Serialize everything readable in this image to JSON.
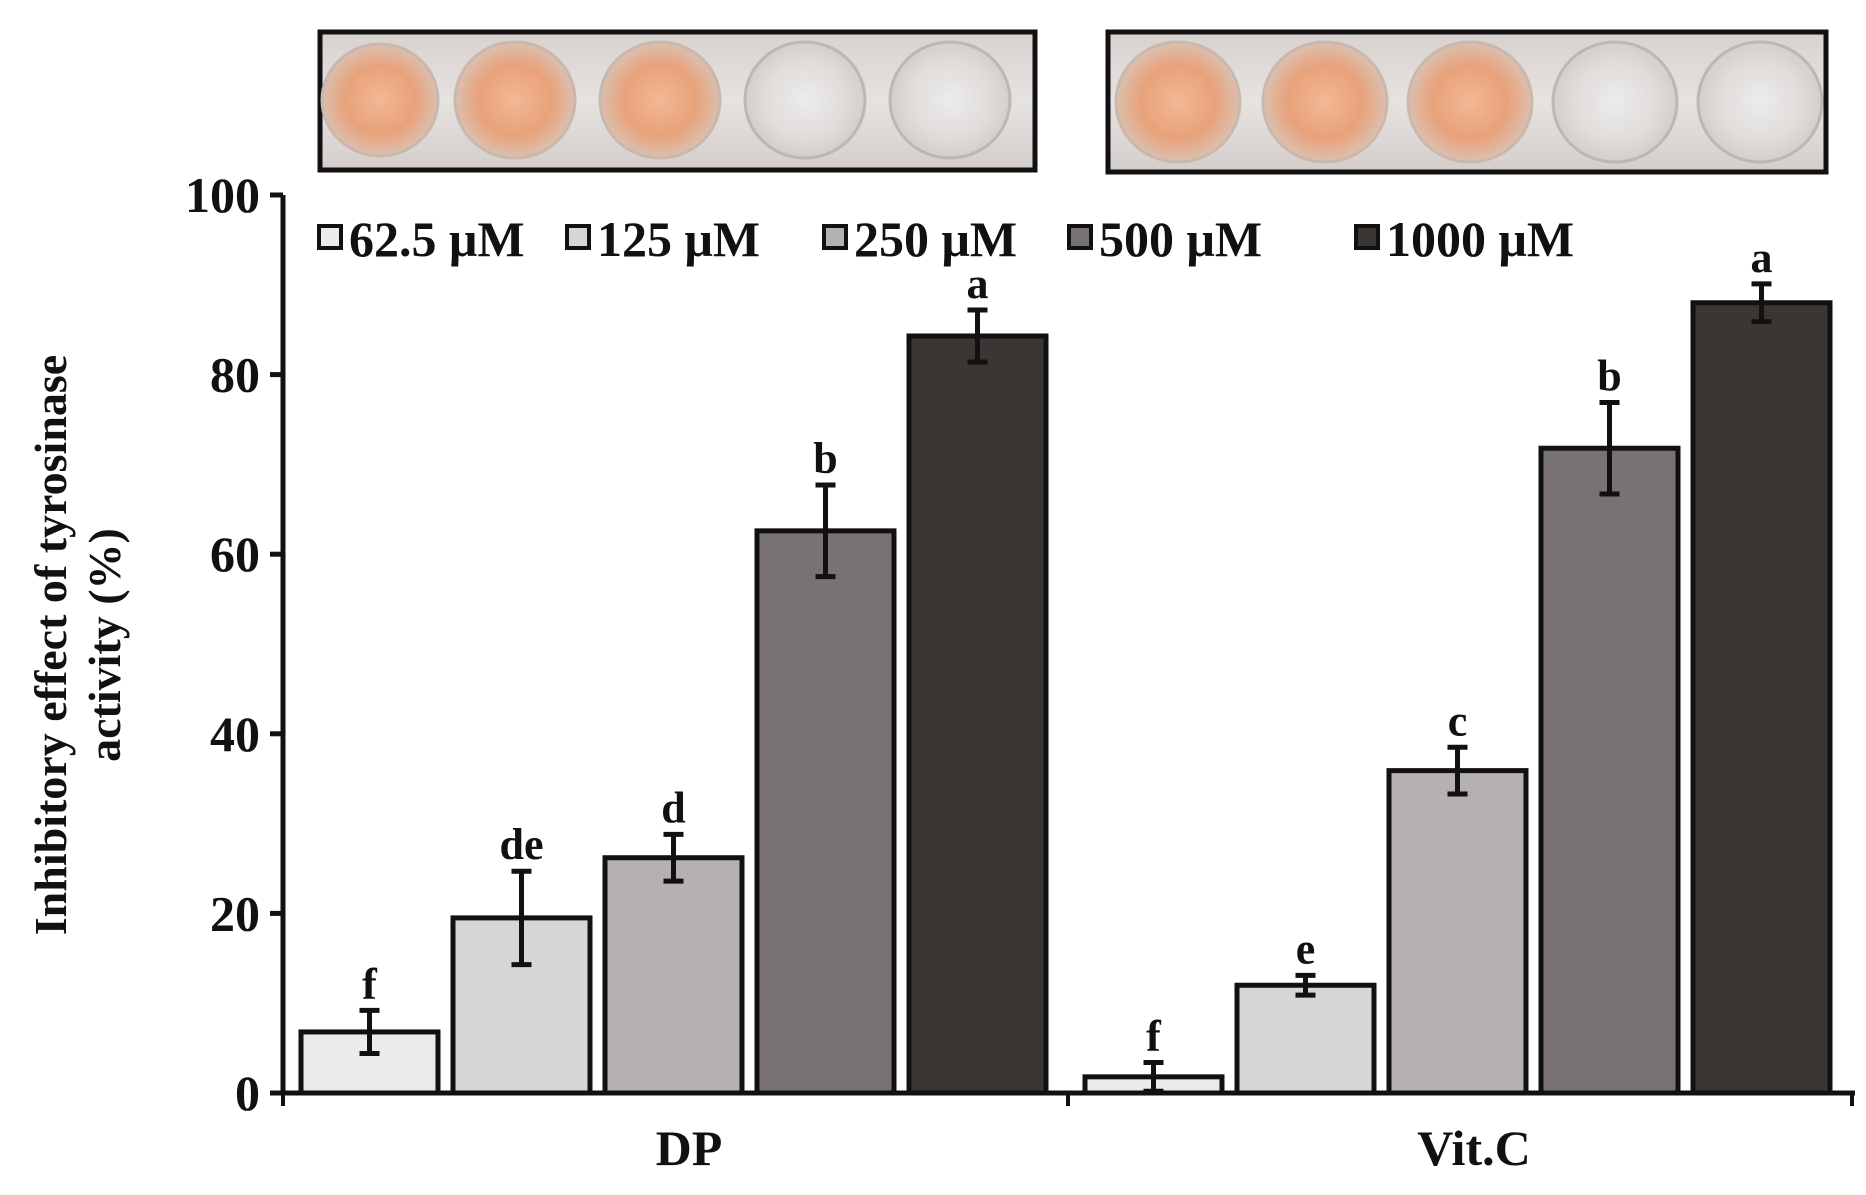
{
  "chart_data": {
    "type": "bar",
    "title": "",
    "xlabel": "",
    "ylabel_lines": [
      "Inhibitory effect of tyrosinase",
      "activity (%)"
    ],
    "ylim": [
      0,
      100
    ],
    "yticks": [
      0,
      20,
      40,
      60,
      80,
      100
    ],
    "categories": [
      "DP",
      "Vit.C"
    ],
    "series": [
      {
        "name": "62.5 μM",
        "color": "#ebebeb",
        "values": [
          6.8,
          1.8
        ],
        "errors": [
          2.4,
          1.6
        ],
        "letters": [
          "f",
          "f"
        ]
      },
      {
        "name": "125 μM",
        "color": "#d6d6d6",
        "values": [
          19.5,
          12.0
        ],
        "errors": [
          5.2,
          1.1
        ],
        "letters": [
          "de",
          "e"
        ]
      },
      {
        "name": "250 μM",
        "color": "#b4b1b0",
        "values": [
          26.2,
          35.9
        ],
        "errors": [
          2.6,
          2.6
        ],
        "letters": [
          "d",
          "c"
        ]
      },
      {
        "name": "500 μM",
        "color": "#787272",
        "values": [
          62.6,
          71.8
        ],
        "errors": [
          5.1,
          5.1
        ],
        "letters": [
          "b",
          "b"
        ]
      },
      {
        "name": "1000 μM",
        "color": "#3b3633",
        "values": [
          84.3,
          88.0
        ],
        "errors": [
          2.9,
          2.1
        ],
        "letters": [
          "a",
          "a"
        ]
      }
    ],
    "legend_position": "top",
    "grid": false,
    "inset_photos": [
      "DP wells (orange to clear)",
      "Vit.C wells (orange to clear)"
    ]
  }
}
